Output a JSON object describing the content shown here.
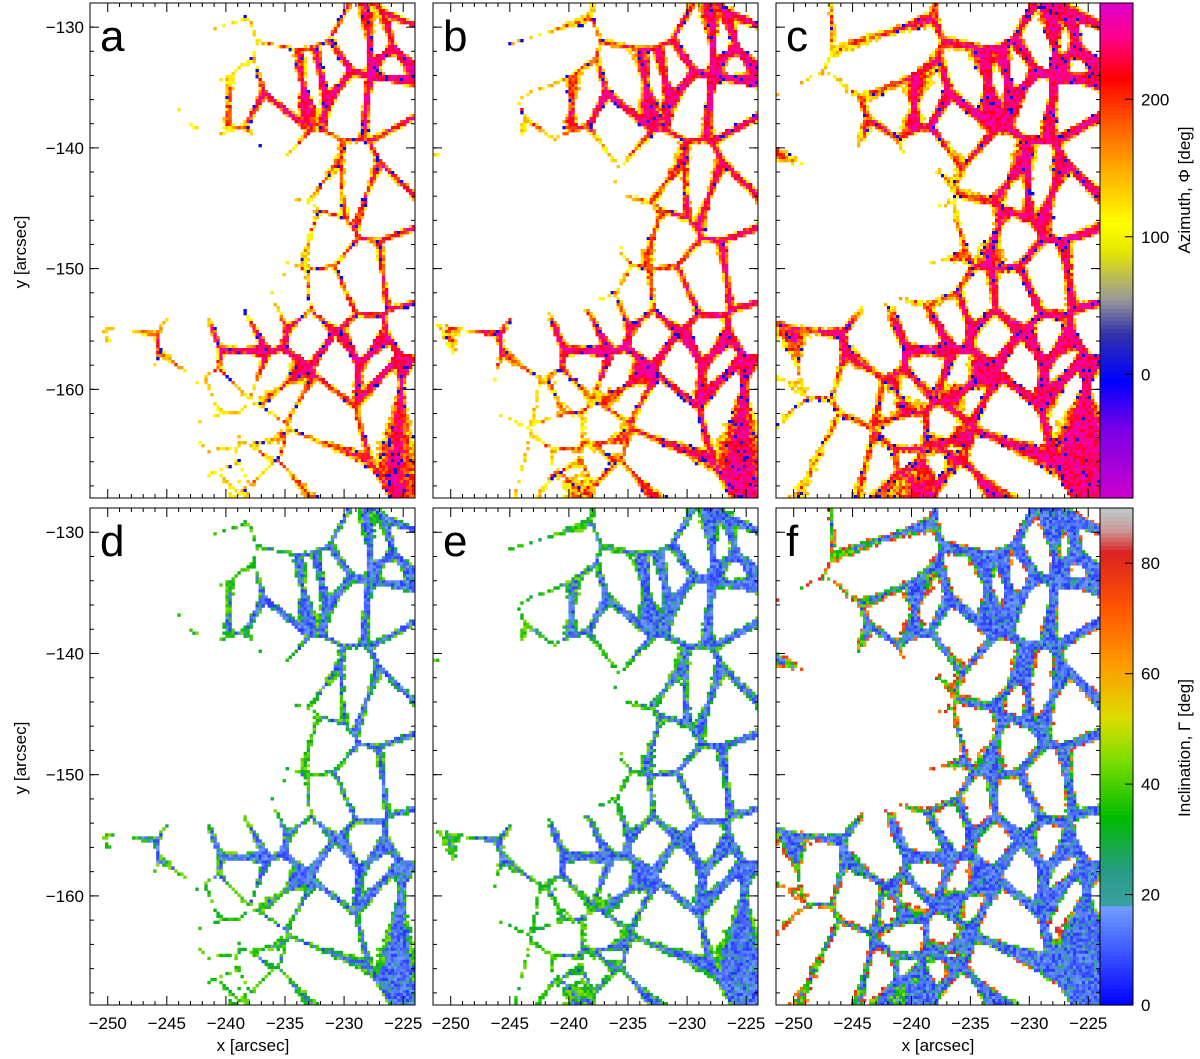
{
  "chart_data": {
    "type": "heatmap",
    "description_axes": {
      "x_label": "x [arcsec]",
      "y_label": "y [arcsec]",
      "xlim": [
        -251.5,
        -224.0
      ],
      "ylim": [
        -169.0,
        -128.0
      ],
      "x_ticks": [
        -250,
        -245,
        -240,
        -235,
        -230,
        -225
      ],
      "y_ticks": [
        -130,
        -140,
        -150,
        -160
      ],
      "x_tick_labels": [
        "−250",
        "−245",
        "−240",
        "−235",
        "−230",
        "−225"
      ],
      "y_tick_labels": [
        "−130",
        "−140",
        "−150",
        "−160"
      ]
    },
    "panels": [
      {
        "letter": "a",
        "row": 0,
        "quantity": "azimuth",
        "coverage": 0.2
      },
      {
        "letter": "b",
        "row": 0,
        "quantity": "azimuth",
        "coverage": 0.28
      },
      {
        "letter": "c",
        "row": 0,
        "quantity": "azimuth",
        "coverage": 0.42
      },
      {
        "letter": "d",
        "row": 1,
        "quantity": "inclination",
        "coverage": 0.2
      },
      {
        "letter": "e",
        "row": 1,
        "quantity": "inclination",
        "coverage": 0.28
      },
      {
        "letter": "f",
        "row": 1,
        "quantity": "inclination",
        "coverage": 0.42
      }
    ],
    "colorbars": [
      {
        "label": "Azimuth, Φ [deg]",
        "range": [
          -90,
          270
        ],
        "ticks": [
          0,
          100,
          200
        ],
        "tick_labels": [
          "0",
          "100",
          "200"
        ],
        "stops": [
          {
            "v": -90,
            "c": "#cc00cc"
          },
          {
            "v": -40,
            "c": "#7a00e6"
          },
          {
            "v": -5,
            "c": "#0000ff"
          },
          {
            "v": 30,
            "c": "#3333aa"
          },
          {
            "v": 55,
            "c": "#999999"
          },
          {
            "v": 90,
            "c": "#e6e600"
          },
          {
            "v": 110,
            "c": "#ffff00"
          },
          {
            "v": 150,
            "c": "#ffaa00"
          },
          {
            "v": 185,
            "c": "#ff5500"
          },
          {
            "v": 215,
            "c": "#ff0000"
          },
          {
            "v": 245,
            "c": "#ff0088"
          },
          {
            "v": 270,
            "c": "#dd00cc"
          }
        ]
      },
      {
        "label": "Inclination, Γ [deg]",
        "range": [
          0,
          90
        ],
        "ticks": [
          0,
          20,
          40,
          60,
          80
        ],
        "tick_labels": [
          "0",
          "20",
          "40",
          "60",
          "80"
        ],
        "stops": [
          {
            "v": 0,
            "c": "#0000ff"
          },
          {
            "v": 17.9,
            "c": "#6f9fff"
          },
          {
            "v": 18.0,
            "c": "#3aa0a0"
          },
          {
            "v": 24,
            "c": "#2a9b8a"
          },
          {
            "v": 34,
            "c": "#00bb00"
          },
          {
            "v": 44,
            "c": "#77dd00"
          },
          {
            "v": 52,
            "c": "#dddd00"
          },
          {
            "v": 62,
            "c": "#ff9900"
          },
          {
            "v": 72,
            "c": "#ff5500"
          },
          {
            "v": 82,
            "c": "#dd2222"
          },
          {
            "v": 86,
            "c": "#cc9999"
          },
          {
            "v": 90,
            "c": "#bbcccc"
          }
        ]
      }
    ],
    "background_color": "#ffffff"
  }
}
